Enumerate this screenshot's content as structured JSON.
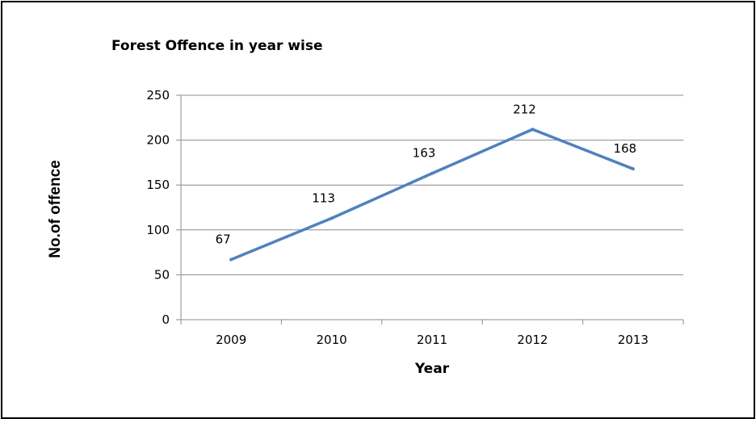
{
  "chart_data": {
    "type": "line",
    "title": "Forest Offence in year wise",
    "xlabel": "Year",
    "ylabel": "No.of offence",
    "categories": [
      "2009",
      "2010",
      "2011",
      "2012",
      "2013"
    ],
    "series": [
      {
        "values": [
          67,
          113,
          163,
          212,
          168
        ],
        "color": "#4f81bd"
      }
    ],
    "data_labels": [
      "67",
      "113",
      "163",
      "212",
      "168"
    ],
    "ylim": [
      0,
      250
    ],
    "yticks": [
      0,
      50,
      100,
      150,
      200,
      250
    ],
    "ytick_labels": [
      "0",
      "50",
      "100",
      "150",
      "200",
      "250"
    ],
    "grid": true,
    "legend": "none"
  }
}
